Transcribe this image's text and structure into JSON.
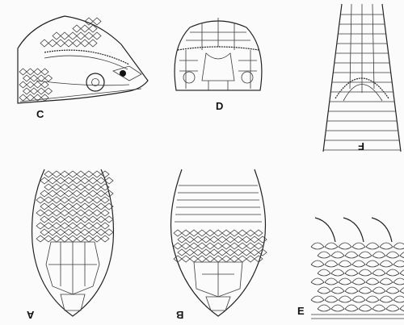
{
  "figure": {
    "background": "#fbfbfb",
    "ink": "#222222",
    "panels": [
      {
        "id": "C",
        "label": "C",
        "flipped": false
      },
      {
        "id": "D",
        "label": "D",
        "flipped": false
      },
      {
        "id": "F",
        "label": "F",
        "flipped": true
      },
      {
        "id": "A",
        "label": "A",
        "flipped": true
      },
      {
        "id": "B",
        "label": "B",
        "flipped": true
      },
      {
        "id": "E",
        "label": "E",
        "flipped": false
      }
    ]
  }
}
